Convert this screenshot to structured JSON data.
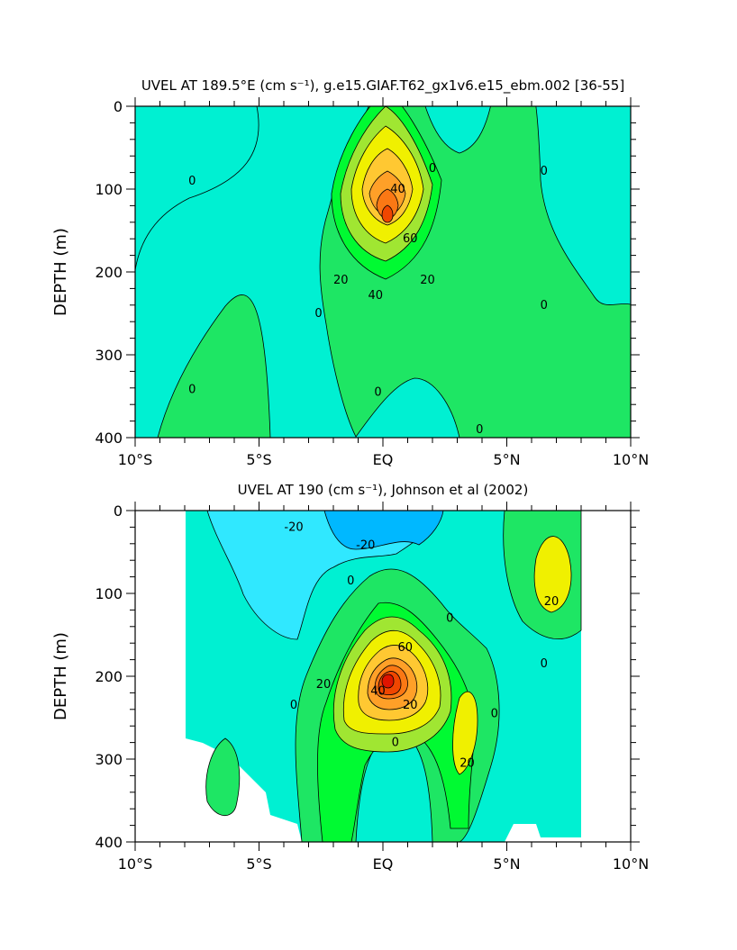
{
  "chart_data": [
    {
      "type": "contour",
      "title": "UVEL AT 189.5°E (cm s⁻¹), g.e15.GIAF.T62_gx1v6.e15_ebm.002 [36-55]",
      "ylabel": "DEPTH (m)",
      "xlim": [
        -10,
        10
      ],
      "ylim": [
        400,
        0
      ],
      "x_ticks": [
        -10,
        -5,
        0,
        5,
        10
      ],
      "x_tick_labels": [
        "10°S",
        "5°S",
        "EQ",
        "5°N",
        "10°N"
      ],
      "y_ticks": [
        0,
        100,
        200,
        300,
        400
      ],
      "y_tick_labels": [
        "0",
        "100",
        "200",
        "300",
        "400"
      ],
      "contour_interval": 10,
      "contour_labels": [
        {
          "x": -7.7,
          "y": 90,
          "text": "0"
        },
        {
          "x": 2.0,
          "y": 75,
          "text": "0"
        },
        {
          "x": 6.5,
          "y": 78,
          "text": "0"
        },
        {
          "x": 0.6,
          "y": 100,
          "text": "40"
        },
        {
          "x": 1.1,
          "y": 160,
          "text": "60"
        },
        {
          "x": -1.7,
          "y": 210,
          "text": "20"
        },
        {
          "x": 1.8,
          "y": 210,
          "text": "20"
        },
        {
          "x": -0.3,
          "y": 228,
          "text": "40"
        },
        {
          "x": -2.6,
          "y": 250,
          "text": "0"
        },
        {
          "x": 6.5,
          "y": 240,
          "text": "0"
        },
        {
          "x": -7.7,
          "y": 342,
          "text": "0"
        },
        {
          "x": -0.2,
          "y": 345,
          "text": "0"
        },
        {
          "x": 3.9,
          "y": 390,
          "text": "0"
        }
      ]
    },
    {
      "type": "contour",
      "title": "UVEL AT 190 (cm s⁻¹), Johnson et al (2002)",
      "ylabel": "DEPTH (m)",
      "xlim": [
        -10,
        10
      ],
      "ylim": [
        400,
        0
      ],
      "x_ticks": [
        -10,
        -5,
        0,
        5,
        10
      ],
      "x_tick_labels": [
        "10°S",
        "5°S",
        "EQ",
        "5°N",
        "10°N"
      ],
      "y_ticks": [
        0,
        100,
        200,
        300,
        400
      ],
      "y_tick_labels": [
        "0",
        "100",
        "200",
        "300",
        "400"
      ],
      "contour_interval": 10,
      "contour_labels": [
        {
          "x": -3.6,
          "y": 20,
          "text": "-20"
        },
        {
          "x": -0.7,
          "y": 42,
          "text": "-20"
        },
        {
          "x": -1.3,
          "y": 85,
          "text": "0"
        },
        {
          "x": 0.9,
          "y": 165,
          "text": "60"
        },
        {
          "x": -2.4,
          "y": 210,
          "text": "20"
        },
        {
          "x": 1.1,
          "y": 235,
          "text": "20"
        },
        {
          "x": -0.2,
          "y": 218,
          "text": "40"
        },
        {
          "x": 2.7,
          "y": 130,
          "text": "0"
        },
        {
          "x": 6.8,
          "y": 110,
          "text": "20"
        },
        {
          "x": 6.5,
          "y": 185,
          "text": "0"
        },
        {
          "x": -3.6,
          "y": 235,
          "text": "0"
        },
        {
          "x": 4.5,
          "y": 245,
          "text": "0"
        },
        {
          "x": 0.5,
          "y": 280,
          "text": "0"
        },
        {
          "x": 3.4,
          "y": 305,
          "text": "20"
        }
      ]
    }
  ],
  "colors": {
    "lt_m30": "#00b8ff",
    "m30_m20": "#30e8ff",
    "m20_0": "#00f0d2",
    "0_10": "#1ee664",
    "10_20": "#00fa32",
    "20_30": "#a0e632",
    "30_40": "#f0f000",
    "40_50": "#ffc832",
    "50_60": "#ffa028",
    "60_70": "#fa7814",
    "gt_70": "#f04600",
    "core": "#e01400"
  }
}
